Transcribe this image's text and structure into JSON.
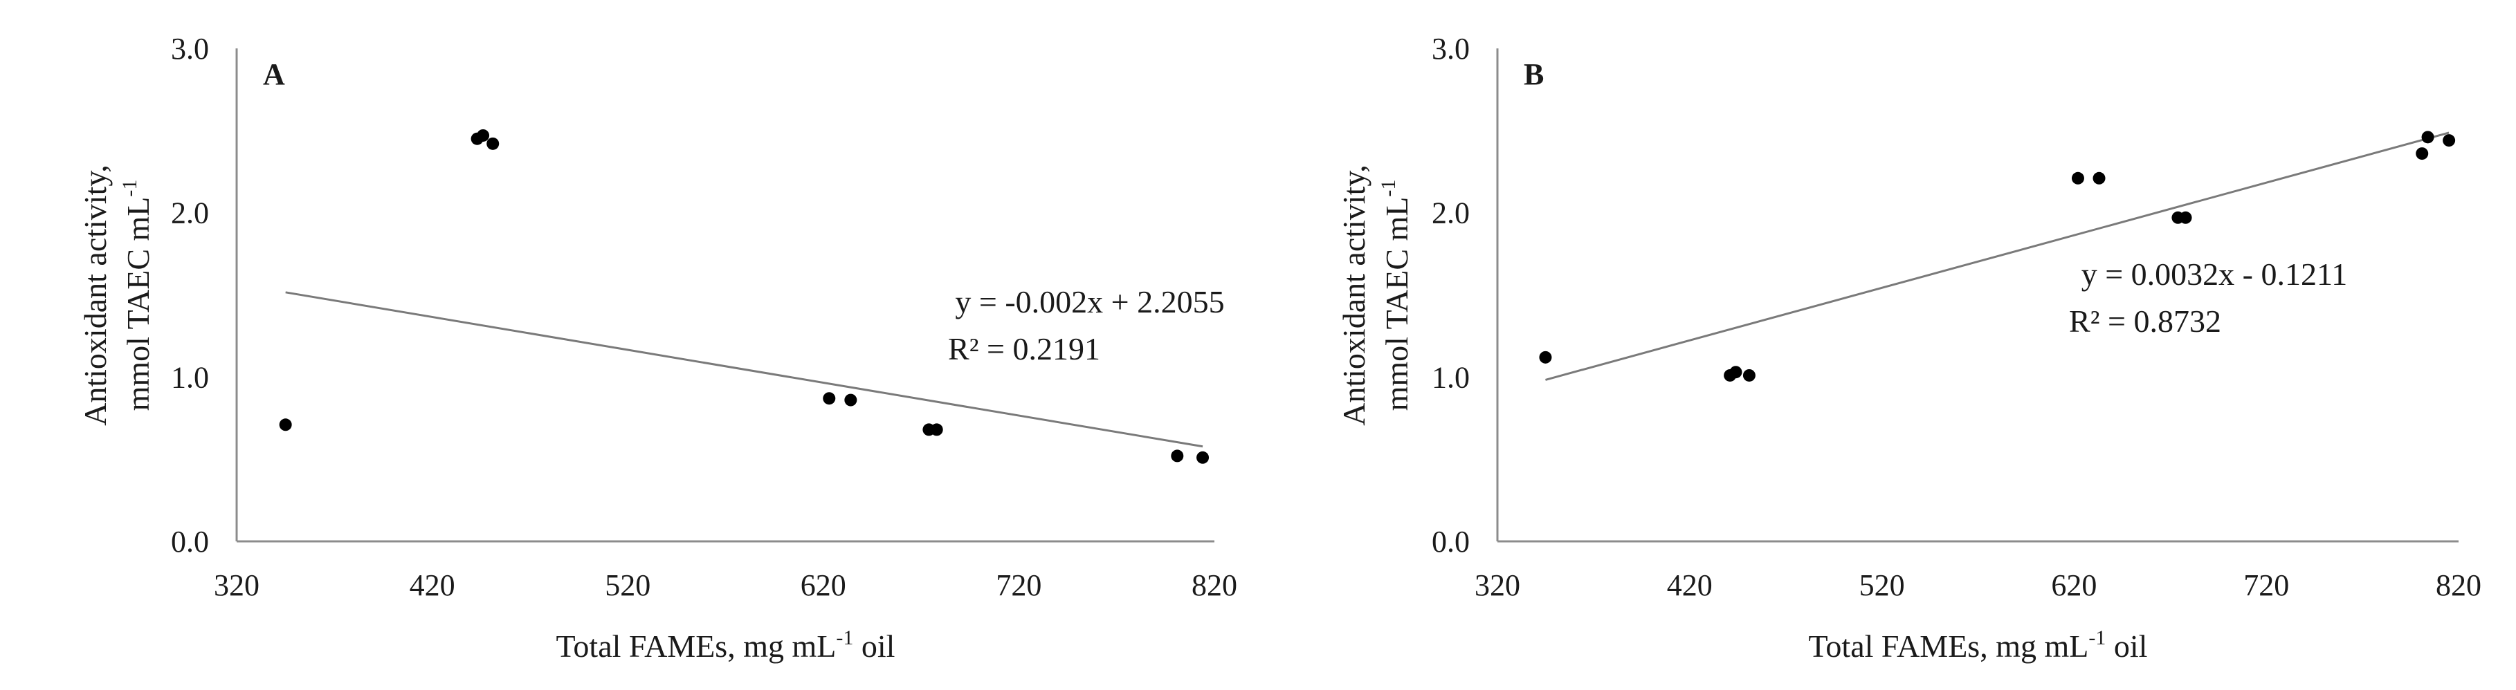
{
  "chart_data": [
    {
      "type": "scatter",
      "panel_label": "A",
      "xlabel_main": "Total FAMEs, mg mL",
      "xlabel_sup": "-1",
      "xlabel_tail": " oil",
      "ylabel_line1": "Antioxidant activity,",
      "ylabel_line2_main": "mmol TAEC mL",
      "ylabel_line2_sup": "-1",
      "xlim": [
        320,
        820
      ],
      "ylim": [
        0,
        3
      ],
      "xticks": [
        "320",
        "420",
        "520",
        "620",
        "720",
        "820"
      ],
      "yticks": [
        "0.0",
        "1.0",
        "2.0",
        "3.0"
      ],
      "points": [
        {
          "x": 345,
          "y": 0.71
        },
        {
          "x": 443,
          "y": 2.45
        },
        {
          "x": 446,
          "y": 2.47
        },
        {
          "x": 451,
          "y": 2.42
        },
        {
          "x": 623,
          "y": 0.87
        },
        {
          "x": 634,
          "y": 0.86
        },
        {
          "x": 674,
          "y": 0.68
        },
        {
          "x": 678,
          "y": 0.68
        },
        {
          "x": 801,
          "y": 0.52
        },
        {
          "x": 814,
          "y": 0.51
        }
      ],
      "trendline": {
        "slope": -0.002,
        "intercept": 2.2055,
        "x_range": [
          345,
          814
        ]
      },
      "equation": "y = -0.002x + 2.2055",
      "r2_text": "R² = 0.2191"
    },
    {
      "type": "scatter",
      "panel_label": "B",
      "xlabel_main": "Total FAMEs, mg mL",
      "xlabel_sup": "-1",
      "xlabel_tail": " oil",
      "ylabel_line1": "Antioxidant activity,",
      "ylabel_line2_main": "mmol TAEC mL",
      "ylabel_line2_sup": "-1",
      "xlim": [
        320,
        820
      ],
      "ylim": [
        0,
        3
      ],
      "xticks": [
        "320",
        "420",
        "520",
        "620",
        "720",
        "820"
      ],
      "yticks": [
        "0.0",
        "1.0",
        "2.0",
        "3.0"
      ],
      "points": [
        {
          "x": 345,
          "y": 1.12
        },
        {
          "x": 441,
          "y": 1.01
        },
        {
          "x": 444,
          "y": 1.03
        },
        {
          "x": 451,
          "y": 1.01
        },
        {
          "x": 622,
          "y": 2.21
        },
        {
          "x": 633,
          "y": 2.21
        },
        {
          "x": 674,
          "y": 1.97
        },
        {
          "x": 678,
          "y": 1.97
        },
        {
          "x": 801,
          "y": 2.36
        },
        {
          "x": 804,
          "y": 2.46
        },
        {
          "x": 815,
          "y": 2.44
        }
      ],
      "trendline": {
        "slope": 0.0032,
        "intercept": -0.1211,
        "x_range": [
          345,
          815
        ]
      },
      "equation": "y = 0.0032x - 0.1211",
      "r2_text": "R² = 0.8732"
    }
  ]
}
